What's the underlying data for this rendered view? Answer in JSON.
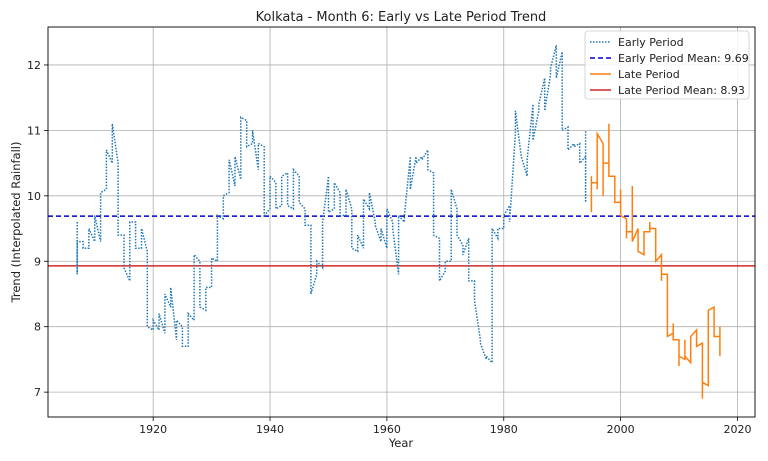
{
  "chart_data": {
    "type": "line",
    "title": "Kolkata - Month 6: Early vs Late Period Trend",
    "xlabel": "Year",
    "ylabel": "Trend (Interpolated Rainfall)",
    "xlim": [
      1902,
      2023
    ],
    "ylim": [
      6.62,
      12.58
    ],
    "xticks": [
      1920,
      1940,
      1960,
      1980,
      2000,
      2020
    ],
    "yticks": [
      7,
      8,
      9,
      10,
      11,
      12
    ],
    "grid": true,
    "legend_position": "top-right",
    "colors": {
      "early": "#1f77b4",
      "late": "#ff7f0e",
      "early_mean": "#0000cc",
      "late_mean": "#d62728"
    },
    "series": [
      {
        "name": "Early Period",
        "style": "dotted",
        "points": [
          [
            1907,
            9.6
          ],
          [
            1907,
            8.8
          ],
          [
            1907,
            9.3
          ],
          [
            1908,
            9.3
          ],
          [
            1908,
            9.2
          ],
          [
            1909,
            9.2
          ],
          [
            1909,
            9.5
          ],
          [
            1910,
            9.3
          ],
          [
            1910,
            9.7
          ],
          [
            1911,
            9.3
          ],
          [
            1911,
            10.05
          ],
          [
            1912,
            10.1
          ],
          [
            1912,
            10.7
          ],
          [
            1913,
            10.5
          ],
          [
            1913,
            11.1
          ],
          [
            1914,
            10.5
          ],
          [
            1914,
            9.4
          ],
          [
            1915,
            9.4
          ],
          [
            1915,
            8.9
          ],
          [
            1916,
            8.7
          ],
          [
            1916,
            9.6
          ],
          [
            1917,
            9.6
          ],
          [
            1917,
            9.2
          ],
          [
            1918,
            9.2
          ],
          [
            1918,
            9.5
          ],
          [
            1919,
            9.15
          ],
          [
            1919,
            8.0
          ],
          [
            1920,
            7.95
          ],
          [
            1920,
            8.1
          ],
          [
            1921,
            7.95
          ],
          [
            1921,
            8.2
          ],
          [
            1922,
            7.9
          ],
          [
            1922,
            8.5
          ],
          [
            1923,
            8.3
          ],
          [
            1923,
            8.6
          ],
          [
            1924,
            7.8
          ],
          [
            1924,
            8.1
          ],
          [
            1925,
            8.0
          ],
          [
            1925,
            7.7
          ],
          [
            1926,
            7.7
          ],
          [
            1926,
            8.2
          ],
          [
            1927,
            8.1
          ],
          [
            1927,
            9.1
          ],
          [
            1928,
            9.0
          ],
          [
            1928,
            8.3
          ],
          [
            1929,
            8.25
          ],
          [
            1929,
            8.6
          ],
          [
            1930,
            8.6
          ],
          [
            1930,
            9.05
          ],
          [
            1931,
            9.0
          ],
          [
            1931,
            9.7
          ],
          [
            1932,
            9.65
          ],
          [
            1932,
            10.0
          ],
          [
            1933,
            10.05
          ],
          [
            1933,
            10.55
          ],
          [
            1934,
            10.15
          ],
          [
            1934,
            10.6
          ],
          [
            1935,
            10.25
          ],
          [
            1935,
            11.2
          ],
          [
            1936,
            11.15
          ],
          [
            1936,
            10.75
          ],
          [
            1937,
            10.8
          ],
          [
            1937,
            11.0
          ],
          [
            1938,
            10.4
          ],
          [
            1938,
            10.8
          ],
          [
            1939,
            10.75
          ],
          [
            1939,
            9.7
          ],
          [
            1940,
            9.8
          ],
          [
            1940,
            10.3
          ],
          [
            1941,
            10.2
          ],
          [
            1941,
            9.8
          ],
          [
            1942,
            9.85
          ],
          [
            1942,
            10.3
          ],
          [
            1943,
            10.35
          ],
          [
            1943,
            9.85
          ],
          [
            1944,
            9.8
          ],
          [
            1944,
            10.4
          ],
          [
            1945,
            10.3
          ],
          [
            1945,
            9.9
          ],
          [
            1946,
            9.8
          ],
          [
            1946,
            9.55
          ],
          [
            1947,
            9.55
          ],
          [
            1947,
            8.5
          ],
          [
            1948,
            8.8
          ],
          [
            1948,
            9.0
          ],
          [
            1949,
            8.9
          ],
          [
            1949,
            9.6
          ],
          [
            1950,
            10.3
          ],
          [
            1950,
            9.75
          ],
          [
            1951,
            9.8
          ],
          [
            1951,
            10.2
          ],
          [
            1952,
            10.05
          ],
          [
            1952,
            9.7
          ],
          [
            1953,
            9.7
          ],
          [
            1953,
            10.1
          ],
          [
            1954,
            9.8
          ],
          [
            1954,
            9.2
          ],
          [
            1955,
            9.15
          ],
          [
            1955,
            9.4
          ],
          [
            1956,
            9.2
          ],
          [
            1956,
            9.95
          ],
          [
            1957,
            9.8
          ],
          [
            1957,
            10.05
          ],
          [
            1958,
            9.6
          ],
          [
            1958,
            9.55
          ],
          [
            1959,
            9.3
          ],
          [
            1959,
            9.5
          ],
          [
            1960,
            9.2
          ],
          [
            1960,
            9.8
          ],
          [
            1961,
            9.6
          ],
          [
            1961,
            9.5
          ],
          [
            1962,
            8.8
          ],
          [
            1962,
            9.7
          ],
          [
            1963,
            9.6
          ],
          [
            1963,
            9.7
          ],
          [
            1964,
            10.6
          ],
          [
            1964,
            10.1
          ],
          [
            1965,
            10.6
          ],
          [
            1965,
            10.5
          ],
          [
            1966,
            10.6
          ],
          [
            1966,
            10.55
          ],
          [
            1967,
            10.7
          ],
          [
            1967,
            10.4
          ],
          [
            1968,
            10.35
          ],
          [
            1968,
            9.4
          ],
          [
            1969,
            9.35
          ],
          [
            1969,
            8.7
          ],
          [
            1970,
            8.85
          ],
          [
            1970,
            9.0
          ],
          [
            1971,
            9.0
          ],
          [
            1971,
            10.1
          ],
          [
            1972,
            9.8
          ],
          [
            1972,
            9.4
          ],
          [
            1973,
            9.25
          ],
          [
            1973,
            9.1
          ],
          [
            1974,
            9.35
          ],
          [
            1974,
            8.7
          ],
          [
            1975,
            8.7
          ],
          [
            1975,
            8.4
          ],
          [
            1976,
            7.8
          ],
          [
            1976,
            7.75
          ],
          [
            1977,
            7.5
          ],
          [
            1977,
            7.55
          ],
          [
            1978,
            7.45
          ],
          [
            1978,
            9.5
          ],
          [
            1979,
            9.35
          ],
          [
            1979,
            9.5
          ],
          [
            1980,
            9.5
          ],
          [
            1980,
            9.7
          ],
          [
            1981,
            9.85
          ],
          [
            1981,
            9.6
          ],
          [
            1982,
            10.95
          ],
          [
            1982,
            11.3
          ],
          [
            1983,
            10.6
          ],
          [
            1983,
            10.6
          ],
          [
            1984,
            10.3
          ],
          [
            1984,
            10.55
          ],
          [
            1985,
            11.4
          ],
          [
            1985,
            10.85
          ],
          [
            1986,
            11.3
          ],
          [
            1986,
            11.4
          ],
          [
            1987,
            11.8
          ],
          [
            1987,
            11.3
          ],
          [
            1988,
            11.85
          ],
          [
            1988,
            11.95
          ],
          [
            1989,
            12.3
          ],
          [
            1989,
            11.8
          ],
          [
            1990,
            12.2
          ],
          [
            1990,
            11.0
          ],
          [
            1991,
            11.05
          ],
          [
            1991,
            10.7
          ],
          [
            1992,
            10.8
          ],
          [
            1992,
            10.75
          ],
          [
            1993,
            10.8
          ],
          [
            1993,
            10.5
          ],
          [
            1994,
            10.6
          ],
          [
            1994,
            9.9
          ],
          [
            1994,
            11.0
          ]
        ]
      },
      {
        "name": "Late Period",
        "style": "solid",
        "points": [
          [
            1995,
            10.3
          ],
          [
            1995,
            9.75
          ],
          [
            1995,
            10.2
          ],
          [
            1996,
            10.2
          ],
          [
            1996,
            10.1
          ],
          [
            1996,
            10.95
          ],
          [
            1997,
            10.8
          ],
          [
            1997,
            10.0
          ],
          [
            1997,
            10.5
          ],
          [
            1998,
            10.5
          ],
          [
            1998,
            11.1
          ],
          [
            1998,
            10.3
          ],
          [
            1999,
            10.3
          ],
          [
            1999,
            9.9
          ],
          [
            2000,
            9.9
          ],
          [
            2000,
            10.1
          ],
          [
            2000,
            9.7
          ],
          [
            2001,
            9.65
          ],
          [
            2001,
            9.35
          ],
          [
            2001,
            9.45
          ],
          [
            2002,
            9.45
          ],
          [
            2002,
            10.15
          ],
          [
            2002,
            9.3
          ],
          [
            2003,
            9.5
          ],
          [
            2003,
            9.15
          ],
          [
            2004,
            9.1
          ],
          [
            2004,
            9.45
          ],
          [
            2005,
            9.45
          ],
          [
            2005,
            9.6
          ],
          [
            2005,
            9.5
          ],
          [
            2006,
            9.5
          ],
          [
            2006,
            9.0
          ],
          [
            2007,
            9.1
          ],
          [
            2007,
            8.7
          ],
          [
            2007,
            8.8
          ],
          [
            2008,
            8.8
          ],
          [
            2008,
            7.85
          ],
          [
            2009,
            7.9
          ],
          [
            2009,
            8.05
          ],
          [
            2009,
            7.8
          ],
          [
            2010,
            7.8
          ],
          [
            2010,
            7.4
          ],
          [
            2010,
            7.55
          ],
          [
            2011,
            7.5
          ],
          [
            2011,
            7.8
          ],
          [
            2011,
            7.55
          ],
          [
            2012,
            7.45
          ],
          [
            2012,
            7.85
          ],
          [
            2013,
            7.95
          ],
          [
            2013,
            7.7
          ],
          [
            2014,
            7.75
          ],
          [
            2014,
            6.9
          ],
          [
            2014,
            7.15
          ],
          [
            2015,
            7.1
          ],
          [
            2015,
            8.25
          ],
          [
            2016,
            8.3
          ],
          [
            2016,
            7.85
          ],
          [
            2017,
            7.85
          ],
          [
            2017,
            7.55
          ],
          [
            2017,
            8.0
          ]
        ]
      }
    ],
    "reference_lines": [
      {
        "name": "Early Period Mean: 9.69",
        "value": 9.69,
        "style": "dashed"
      },
      {
        "name": "Late Period Mean: 8.93",
        "value": 8.93,
        "style": "solid"
      }
    ],
    "legend": [
      "Early Period",
      "Early Period Mean: 9.69",
      "Late Period",
      "Late Period Mean: 8.93"
    ]
  }
}
